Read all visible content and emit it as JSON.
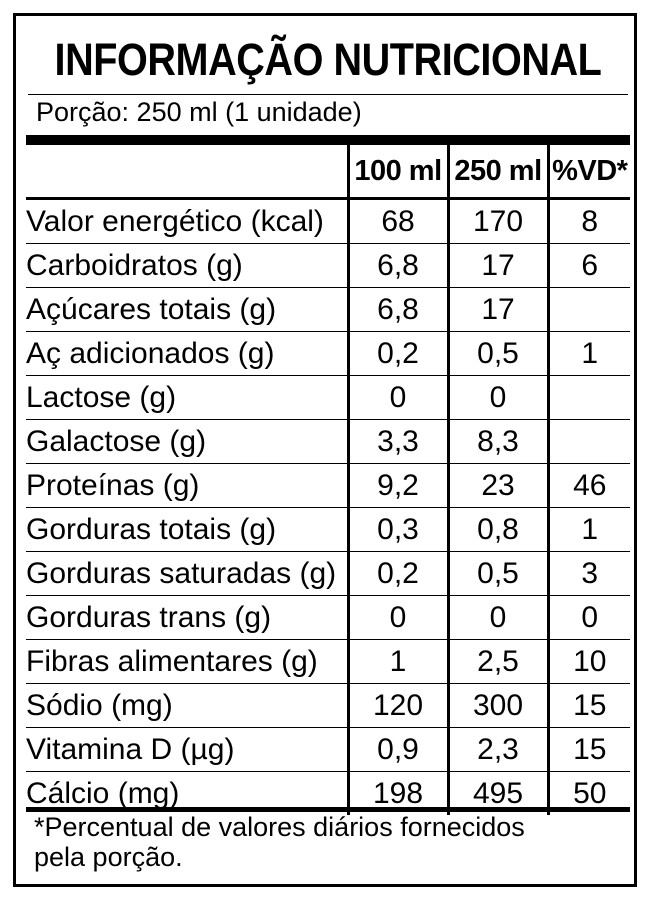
{
  "label": {
    "title": "INFORMAÇÃO NUTRICIONAL",
    "portion": "Porção: 250 ml (1 unidade)",
    "columns": {
      "per_100": "100 ml",
      "per_250": "250 ml",
      "vd": "%VD*"
    },
    "rows": [
      {
        "name": "Valor energético (kcal)",
        "per_100": "68",
        "per_250": "170",
        "vd": "8"
      },
      {
        "name": "Carboidratos (g)",
        "per_100": "6,8",
        "per_250": "17",
        "vd": "6"
      },
      {
        "name": "Açúcares totais (g)",
        "per_100": "6,8",
        "per_250": "17",
        "vd": ""
      },
      {
        "name": "Aç adicionados (g)",
        "per_100": "0,2",
        "per_250": "0,5",
        "vd": "1"
      },
      {
        "name": "Lactose (g)",
        "per_100": "0",
        "per_250": "0",
        "vd": ""
      },
      {
        "name": "Galactose (g)",
        "per_100": "3,3",
        "per_250": "8,3",
        "vd": ""
      },
      {
        "name": "Proteínas (g)",
        "per_100": "9,2",
        "per_250": "23",
        "vd": "46"
      },
      {
        "name": "Gorduras totais (g)",
        "per_100": "0,3",
        "per_250": "0,8",
        "vd": "1"
      },
      {
        "name": "Gorduras saturadas (g)",
        "per_100": "0,2",
        "per_250": "0,5",
        "vd": "3"
      },
      {
        "name": "Gorduras trans (g)",
        "per_100": "0",
        "per_250": "0",
        "vd": "0"
      },
      {
        "name": "Fibras alimentares (g)",
        "per_100": "1",
        "per_250": "2,5",
        "vd": "10"
      },
      {
        "name": "Sódio (mg)",
        "per_100": "120",
        "per_250": "300",
        "vd": "15"
      },
      {
        "name": "Vitamina D (µg)",
        "per_100": "0,9",
        "per_250": "2,3",
        "vd": "15"
      },
      {
        "name": "Cálcio (mg)",
        "per_100": "198",
        "per_250": "495",
        "vd": "50"
      }
    ],
    "footnote": {
      "line1": "*Percentual de valores diários fornecidos",
      "line2": "pela porção."
    }
  }
}
